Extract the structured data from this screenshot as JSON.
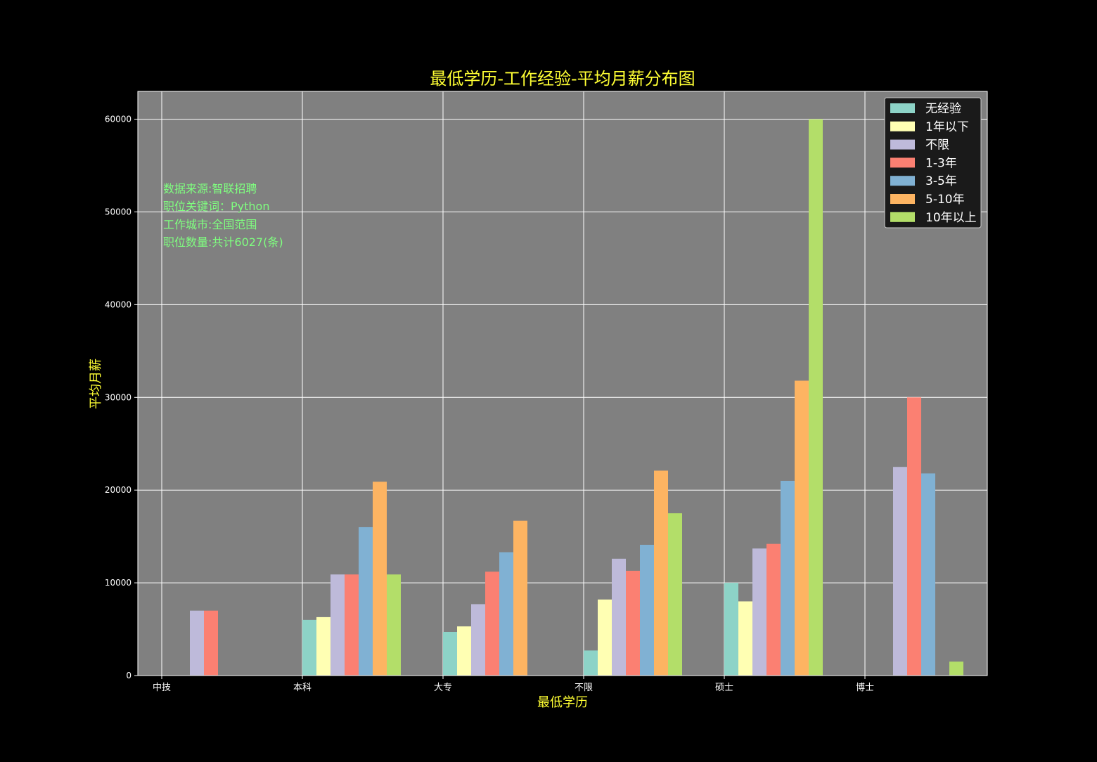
{
  "chart_data": {
    "type": "bar",
    "title": "最低学历-工作经验-平均月薪分布图",
    "xlabel": "最低学历",
    "ylabel": "平均月薪",
    "categories": [
      "中技",
      "本科",
      "大专",
      "不限",
      "硕士",
      "博士"
    ],
    "ylim": [
      0,
      63000
    ],
    "yticks": [
      0,
      10000,
      20000,
      30000,
      40000,
      50000,
      60000
    ],
    "grid": true,
    "legend_position": "top-right",
    "series": [
      {
        "name": "无经验",
        "color": "#8dd3c7",
        "values": [
          0,
          6000,
          4700,
          2700,
          10000,
          0
        ]
      },
      {
        "name": "1年以下",
        "color": "#ffffb3",
        "values": [
          0,
          6300,
          5300,
          8200,
          8000,
          0
        ]
      },
      {
        "name": "不限",
        "color": "#bebada",
        "values": [
          7000,
          10900,
          7700,
          12600,
          13700,
          22500
        ]
      },
      {
        "name": "1-3年",
        "color": "#fb8072",
        "values": [
          7000,
          10900,
          11200,
          11300,
          14200,
          30000
        ]
      },
      {
        "name": "3-5年",
        "color": "#80b1d3",
        "values": [
          0,
          16000,
          13300,
          14100,
          21000,
          21800
        ]
      },
      {
        "name": "5-10年",
        "color": "#fdb462",
        "values": [
          0,
          20900,
          16700,
          22100,
          31800,
          0
        ]
      },
      {
        "name": "10年以上",
        "color": "#b3de69",
        "values": [
          0,
          10900,
          0,
          17500,
          60000,
          1500
        ]
      }
    ],
    "annotations": [
      "数据来源:智联招聘",
      "职位关键词：Python",
      "工作城市:全国范围",
      "职位数量:共计6027(条)"
    ],
    "colors": {
      "background": "#000000",
      "plot_background": "#808080",
      "grid": "#ffffff",
      "title": "#ffff33",
      "axis_label": "#ffff33",
      "tick_label": "#ffffff",
      "annotation": "#7fff7f",
      "legend_background": "#1a1a1a",
      "legend_text": "#ffffff"
    }
  }
}
